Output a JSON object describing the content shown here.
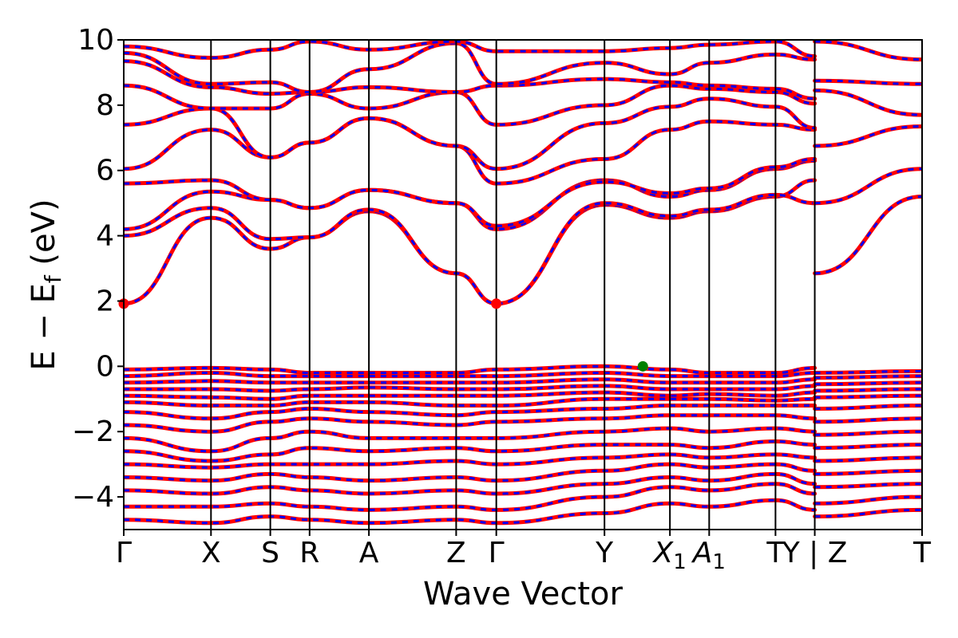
{
  "chart_data": {
    "type": "line",
    "title": "",
    "xlabel": "Wave Vector",
    "ylabel_main": "E − E",
    "ylabel_sub": "f",
    "ylabel_unit": " (eV)",
    "ylim": [
      -5,
      10
    ],
    "yticks": [
      -4,
      -2,
      0,
      2,
      4,
      6,
      8,
      10
    ],
    "ytick_labels": [
      "−4",
      "−2",
      "0",
      "2",
      "4",
      "6",
      "8",
      "10"
    ],
    "xlim": [
      0,
      9.15
    ],
    "kpoints": [
      {
        "x": 0.0,
        "label": "Γ"
      },
      {
        "x": 1.0,
        "label": "X"
      },
      {
        "x": 1.68,
        "label": "S"
      },
      {
        "x": 2.13,
        "label": "R"
      },
      {
        "x": 2.81,
        "label": "A"
      },
      {
        "x": 3.81,
        "label": "Z"
      },
      {
        "x": 4.27,
        "label": "Γ"
      },
      {
        "x": 5.51,
        "label": "Y"
      },
      {
        "x": 6.26,
        "label": "X",
        "sub": "1"
      },
      {
        "x": 6.71,
        "label": "A",
        "sub": "1"
      },
      {
        "x": 7.47,
        "label": "T"
      },
      {
        "x": 7.92,
        "label": "Y | Z"
      },
      {
        "x": 9.15,
        "label": "T"
      }
    ],
    "path_break_x": 7.92,
    "series_styles": [
      {
        "role": "red-solid",
        "color": "#ff0000"
      },
      {
        "role": "blue-dashed",
        "color": "#0000ff"
      }
    ],
    "markers": [
      {
        "x": 0.0,
        "y": 1.92,
        "color": "#ff0000",
        "role": "conduction-band-minimum"
      },
      {
        "x": 4.27,
        "y": 1.92,
        "color": "#ff0000",
        "role": "conduction-band-minimum"
      },
      {
        "x": 5.95,
        "y": 0.0,
        "color": "#008000",
        "role": "valence-band-maximum"
      }
    ],
    "conduction_bands": [
      [
        1.92,
        4.55,
        3.6,
        3.95,
        4.75,
        2.85,
        1.92,
        4.95,
        4.55,
        4.75,
        5.2,
        5.7
      ],
      [
        4.0,
        4.85,
        3.9,
        3.95,
        4.8,
        2.85,
        1.92,
        5.0,
        4.6,
        4.8,
        5.25,
        5.0
      ],
      [
        4.2,
        5.35,
        5.1,
        4.85,
        5.4,
        5.0,
        4.2,
        5.7,
        5.2,
        5.4,
        6.05,
        6.3
      ],
      [
        5.6,
        5.7,
        5.1,
        4.85,
        5.4,
        5.0,
        4.3,
        5.65,
        5.3,
        5.45,
        6.1,
        6.35
      ],
      [
        6.05,
        7.25,
        6.4,
        6.85,
        7.6,
        6.75,
        5.6,
        6.35,
        7.25,
        7.5,
        7.4,
        7.25
      ],
      [
        7.4,
        7.9,
        6.4,
        6.85,
        7.6,
        6.75,
        6.05,
        7.45,
        7.95,
        8.2,
        7.95,
        7.3
      ],
      [
        8.6,
        7.9,
        7.9,
        8.35,
        7.9,
        8.4,
        7.4,
        8.0,
        8.6,
        8.5,
        8.4,
        8.05
      ],
      [
        9.35,
        8.55,
        8.35,
        8.4,
        8.55,
        8.4,
        8.6,
        8.8,
        8.7,
        8.6,
        8.5,
        8.2
      ],
      [
        9.6,
        8.65,
        8.7,
        8.4,
        9.1,
        9.9,
        8.65,
        9.3,
        8.95,
        9.3,
        9.55,
        9.4
      ],
      [
        9.8,
        9.45,
        9.7,
        9.95,
        9.7,
        9.95,
        9.65,
        9.65,
        9.75,
        9.85,
        9.95,
        9.5
      ]
    ],
    "conduction_bands_tail": [
      [
        2.85,
        5.2
      ],
      [
        5.0,
        6.05
      ],
      [
        6.75,
        7.35
      ],
      [
        8.45,
        7.7
      ],
      [
        8.75,
        8.65
      ],
      [
        9.95,
        9.4
      ]
    ],
    "valence_bands": [
      [
        -0.1,
        -0.05,
        -0.1,
        -0.2,
        -0.2,
        -0.2,
        -0.1,
        0.0,
        -0.1,
        -0.2,
        -0.2,
        -0.05
      ],
      [
        -0.3,
        -0.2,
        -0.3,
        -0.3,
        -0.3,
        -0.3,
        -0.3,
        -0.2,
        -0.3,
        -0.3,
        -0.3,
        -0.2
      ],
      [
        -0.5,
        -0.45,
        -0.5,
        -0.5,
        -0.5,
        -0.5,
        -0.5,
        -0.4,
        -0.5,
        -0.5,
        -0.5,
        -0.4
      ],
      [
        -0.7,
        -0.7,
        -0.75,
        -0.7,
        -0.65,
        -0.7,
        -0.7,
        -0.6,
        -0.7,
        -0.7,
        -0.7,
        -0.6
      ],
      [
        -0.9,
        -0.95,
        -1.0,
        -0.9,
        -0.9,
        -0.9,
        -0.9,
        -0.8,
        -0.9,
        -0.85,
        -0.9,
        -0.8
      ],
      [
        -1.1,
        -1.2,
        -1.2,
        -1.1,
        -1.1,
        -1.2,
        -1.2,
        -1.0,
        -1.0,
        -1.0,
        -1.05,
        -1.0
      ],
      [
        -1.4,
        -1.6,
        -1.4,
        -1.3,
        -1.4,
        -1.5,
        -1.4,
        -1.3,
        -1.2,
        -1.2,
        -1.2,
        -1.2
      ],
      [
        -1.8,
        -2.0,
        -1.7,
        -1.6,
        -1.7,
        -1.8,
        -1.7,
        -1.6,
        -1.5,
        -1.5,
        -1.5,
        -1.6
      ],
      [
        -2.2,
        -2.6,
        -2.2,
        -2.0,
        -2.2,
        -2.2,
        -2.2,
        -2.0,
        -1.9,
        -2.0,
        -1.9,
        -2.0
      ],
      [
        -2.6,
        -2.9,
        -2.7,
        -2.5,
        -2.6,
        -2.5,
        -2.6,
        -2.4,
        -2.4,
        -2.5,
        -2.3,
        -2.4
      ],
      [
        -3.0,
        -3.1,
        -3.0,
        -3.0,
        -3.0,
        -2.9,
        -3.0,
        -2.8,
        -2.7,
        -2.8,
        -2.7,
        -2.8
      ],
      [
        -3.4,
        -3.5,
        -3.3,
        -3.4,
        -3.5,
        -3.4,
        -3.5,
        -3.2,
        -3.0,
        -3.1,
        -3.0,
        -3.2
      ],
      [
        -3.8,
        -3.9,
        -3.7,
        -3.8,
        -3.9,
        -3.8,
        -3.9,
        -3.6,
        -3.4,
        -3.5,
        -3.3,
        -3.6
      ],
      [
        -4.3,
        -4.3,
        -4.2,
        -4.3,
        -4.4,
        -4.3,
        -4.4,
        -4.0,
        -3.7,
        -3.8,
        -3.6,
        -3.9
      ],
      [
        -4.7,
        -4.8,
        -4.6,
        -4.7,
        -4.8,
        -4.7,
        -4.8,
        -4.5,
        -4.2,
        -4.3,
        -4.1,
        -4.4
      ]
    ],
    "valence_bands_tail": [
      [
        -0.2,
        -0.15
      ],
      [
        -0.35,
        -0.3
      ],
      [
        -0.55,
        -0.5
      ],
      [
        -0.75,
        -0.7
      ],
      [
        -0.95,
        -0.9
      ],
      [
        -1.3,
        -1.2
      ],
      [
        -1.7,
        -1.6
      ],
      [
        -2.1,
        -2.0
      ],
      [
        -2.5,
        -2.4
      ],
      [
        -2.9,
        -2.8
      ],
      [
        -3.3,
        -3.2
      ],
      [
        -3.7,
        -3.6
      ],
      [
        -4.2,
        -4.0
      ],
      [
        -4.6,
        -4.4
      ]
    ]
  }
}
